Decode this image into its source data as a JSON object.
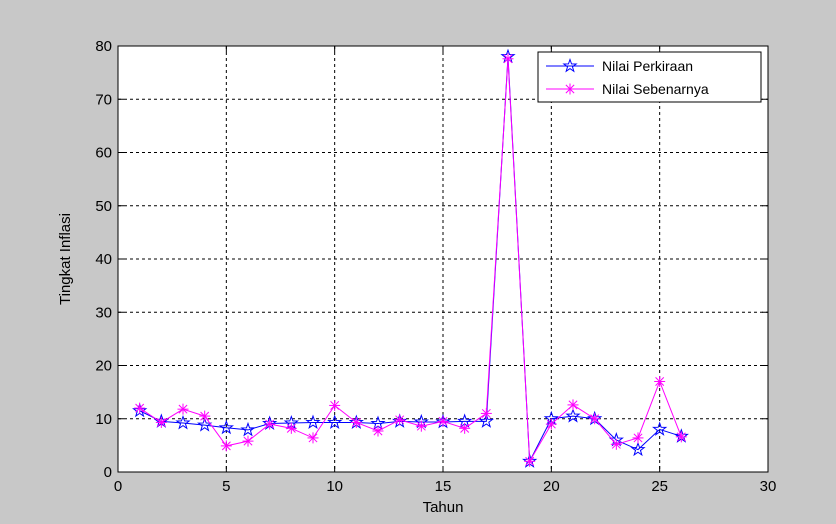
{
  "chart_data": {
    "type": "line",
    "xlabel": "Tahun",
    "ylabel": "Tingkat Inflasi",
    "xlim": [
      0,
      30
    ],
    "ylim": [
      0,
      80
    ],
    "xticks": [
      0,
      5,
      10,
      15,
      20,
      25,
      30
    ],
    "yticks": [
      0,
      10,
      20,
      30,
      40,
      50,
      60,
      70,
      80
    ],
    "grid": true,
    "legend_position": "top-right",
    "x": [
      1,
      2,
      3,
      4,
      5,
      6,
      7,
      8,
      9,
      10,
      11,
      12,
      13,
      14,
      15,
      16,
      17,
      18,
      19,
      20,
      21,
      22,
      23,
      24,
      25,
      26
    ],
    "series": [
      {
        "name": "Nilai Perkiraan",
        "color": "#0000ff",
        "marker": "star",
        "values": [
          11.5,
          9.5,
          9.2,
          8.8,
          8.3,
          7.9,
          9.1,
          9.2,
          9.3,
          9.3,
          9.3,
          9.1,
          9.5,
          9.4,
          9.4,
          9.5,
          9.5,
          78.0,
          2.0,
          10.0,
          10.5,
          10.0,
          6.0,
          4.2,
          8.0,
          6.7
        ]
      },
      {
        "name": "Nilai Sebenarnya",
        "color": "#ff00ff",
        "marker": "asterisk",
        "values": [
          12.0,
          9.3,
          11.8,
          10.5,
          4.9,
          5.8,
          9.0,
          8.2,
          6.4,
          12.5,
          9.3,
          7.7,
          9.8,
          8.6,
          9.5,
          8.2,
          11.0,
          77.6,
          2.0,
          9.0,
          12.6,
          10.0,
          5.2,
          6.4,
          17.0,
          6.6
        ]
      }
    ]
  }
}
